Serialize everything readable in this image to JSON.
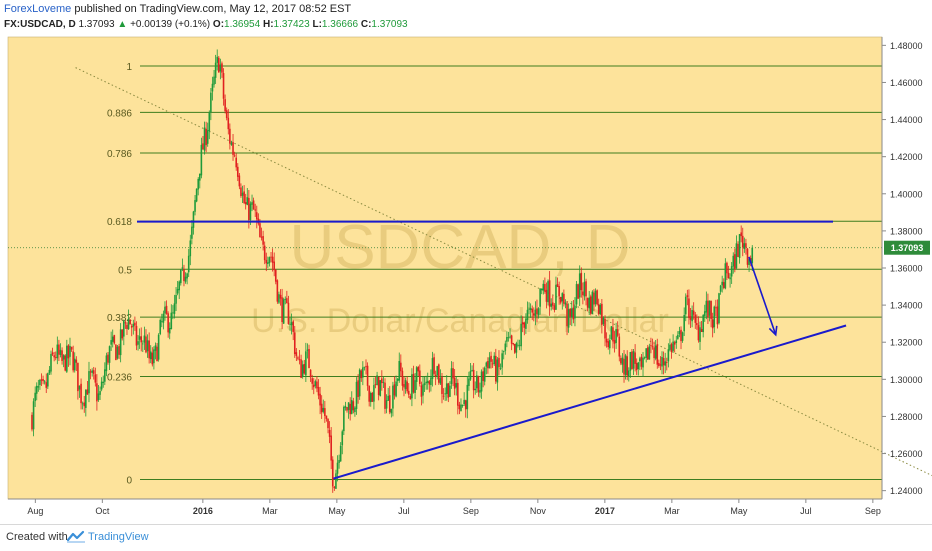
{
  "header": {
    "author": "ForexLoveme",
    "published": "published on TradingView.com, May 12, 2017 08:52 EST",
    "symbol": "FX:USDCAD, D",
    "last": "1.37093",
    "change": "+0.00139 (+0.1%)",
    "o_label": "O:",
    "o_value": "1.36954",
    "h_label": "H:",
    "h_value": "1.37423",
    "l_label": "L:",
    "l_value": "1.36666",
    "c_label": "C:",
    "c_value": "1.37093"
  },
  "footer": {
    "created_with": "Created with",
    "brand": "TradingView"
  },
  "chart_data": {
    "type": "candlestick",
    "watermark_symbol": "USDCAD, D",
    "watermark_name": "U.S. Dollar/Canadian Dollar",
    "current_price_label": "1.37093",
    "current_price": 1.37093,
    "ylim": [
      1.2355,
      1.4845
    ],
    "y_ticks": [
      "1.48000",
      "1.46000",
      "1.44000",
      "1.42000",
      "1.40000",
      "1.38000",
      "1.36000",
      "1.34000",
      "1.32000",
      "1.30000",
      "1.28000",
      "1.26000",
      "1.24000"
    ],
    "y_tick_values": [
      1.48,
      1.46,
      1.44,
      1.42,
      1.4,
      1.38,
      1.36,
      1.34,
      1.32,
      1.3,
      1.28,
      1.26,
      1.24
    ],
    "x_ticks": [
      "Aug",
      "Oct",
      "2016",
      "Mar",
      "May",
      "Jul",
      "Sep",
      "Nov",
      "2017",
      "Mar",
      "May",
      "Jul",
      "Sep"
    ],
    "x_tick_months": [
      0,
      2,
      5,
      7,
      9,
      11,
      13,
      15,
      17,
      19,
      21,
      23,
      25
    ],
    "fib_levels": [
      {
        "label": "1",
        "price": 1.4689
      },
      {
        "label": "0.886",
        "price": 1.4439
      },
      {
        "label": "0.786",
        "price": 1.422
      },
      {
        "label": "0.618",
        "price": 1.3852
      },
      {
        "label": "0.5",
        "price": 1.3593
      },
      {
        "label": "0.382",
        "price": 1.3335
      },
      {
        "label": "0.236",
        "price": 1.3015
      },
      {
        "label": "0",
        "price": 1.246
      }
    ],
    "resistance_line_price": 1.385,
    "support_line": [
      [
        9.0,
        1.2465
      ],
      [
        24.3,
        1.329
      ]
    ],
    "diagonal_line": [
      [
        1.3,
        1.468
      ],
      [
        27.0,
        1.247
      ]
    ],
    "arrow": [
      [
        21.4,
        1.366
      ],
      [
        22.2,
        1.324
      ]
    ],
    "bull_color": "#1f9a3a",
    "bear_color": "#e02020",
    "background_color": "#fde39b",
    "fib_color": "#3e7d1f",
    "trendline_color": "#1a1acc",
    "monthly_path": [
      [
        0,
        1.28
      ],
      [
        0.5,
        1.305
      ],
      [
        1,
        1.315
      ],
      [
        1.5,
        1.295
      ],
      [
        2,
        1.295
      ],
      [
        2.5,
        1.32
      ],
      [
        3,
        1.33
      ],
      [
        3.5,
        1.31
      ],
      [
        4,
        1.33
      ],
      [
        4.5,
        1.35
      ],
      [
        5,
        1.41
      ],
      [
        5.3,
        1.45
      ],
      [
        5.6,
        1.4689
      ],
      [
        6,
        1.42
      ],
      [
        6.5,
        1.39
      ],
      [
        7,
        1.37
      ],
      [
        7.5,
        1.34
      ],
      [
        8,
        1.31
      ],
      [
        8.5,
        1.3
      ],
      [
        9,
        1.25
      ],
      [
        9.5,
        1.29
      ],
      [
        10,
        1.3
      ],
      [
        10.5,
        1.29
      ],
      [
        11,
        1.3
      ],
      [
        11.5,
        1.295
      ],
      [
        12,
        1.305
      ],
      [
        12.5,
        1.295
      ],
      [
        13,
        1.29
      ],
      [
        13.5,
        1.305
      ],
      [
        14,
        1.31
      ],
      [
        14.5,
        1.32
      ],
      [
        15,
        1.34
      ],
      [
        15.5,
        1.35
      ],
      [
        16,
        1.335
      ],
      [
        16.5,
        1.35
      ],
      [
        17,
        1.335
      ],
      [
        17.5,
        1.315
      ],
      [
        18,
        1.305
      ],
      [
        18.5,
        1.315
      ],
      [
        19,
        1.31
      ],
      [
        19.5,
        1.335
      ],
      [
        20,
        1.33
      ],
      [
        20.5,
        1.34
      ],
      [
        21,
        1.37
      ],
      [
        21.5,
        1.3709
      ]
    ]
  }
}
